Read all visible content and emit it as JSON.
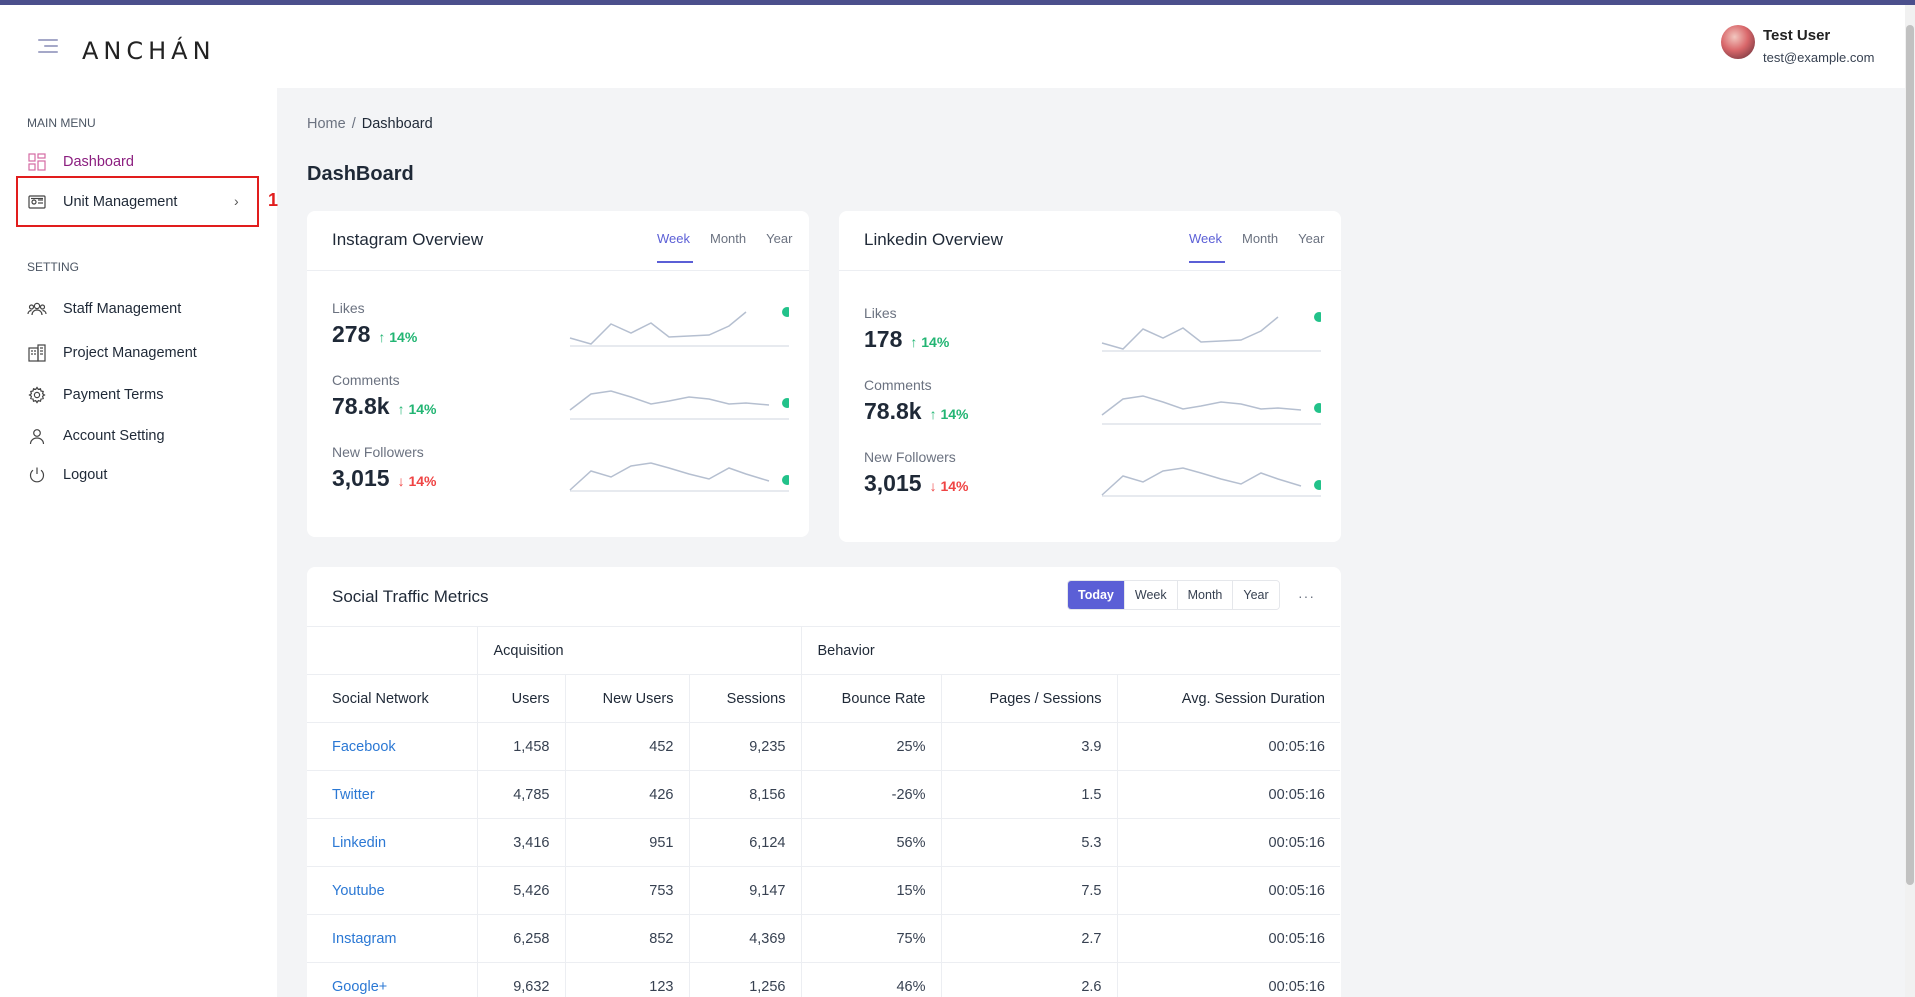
{
  "header": {
    "logo": "ANCHÁN",
    "user_name": "Test User",
    "user_email": "test@example.com"
  },
  "sidebar": {
    "main_menu_label": "MAIN MENU",
    "setting_label": "SETTING",
    "main_items": [
      "Dashboard",
      "Unit Management"
    ],
    "setting_items": [
      "Staff Management",
      "Project Management",
      "Payment Terms",
      "Account Setting",
      "Logout"
    ],
    "annotation": "1"
  },
  "breadcrumb": {
    "home": "Home",
    "separator": "/",
    "current": "Dashboard"
  },
  "page_title": "DashBoard",
  "instagram": {
    "title": "Instagram Overview",
    "tabs": [
      "Week",
      "Month",
      "Year"
    ],
    "metrics": [
      {
        "label": "Likes",
        "value": "278",
        "arrow": "↑",
        "delta": "14%"
      },
      {
        "label": "Comments",
        "value": "78.8k",
        "arrow": "↑",
        "delta": "14%"
      },
      {
        "label": "New Followers",
        "value": "3,015",
        "arrow": "↓",
        "delta": "14%"
      }
    ]
  },
  "linkedin": {
    "title": "Linkedin Overview",
    "tabs": [
      "Week",
      "Month",
      "Year"
    ],
    "metrics": [
      {
        "label": "Likes",
        "value": "178",
        "arrow": "↑",
        "delta": "14%"
      },
      {
        "label": "Comments",
        "value": "78.8k",
        "arrow": "↑",
        "delta": "14%"
      },
      {
        "label": "New Followers",
        "value": "3,015",
        "arrow": "↓",
        "delta": "14%"
      }
    ]
  },
  "traffic": {
    "title": "Social Traffic Metrics",
    "ranges": [
      "Today",
      "Week",
      "Month",
      "Year"
    ],
    "more": "···",
    "groups": [
      "Acquisition",
      "Behavior"
    ],
    "columns": [
      "Social Network",
      "Users",
      "New Users",
      "Sessions",
      "Bounce Rate",
      "Pages / Sessions",
      "Avg. Session Duration"
    ],
    "rows": [
      [
        "Facebook",
        "1,458",
        "452",
        "9,235",
        "25%",
        "3.9",
        "00:05:16"
      ],
      [
        "Twitter",
        "4,785",
        "426",
        "8,156",
        "-26%",
        "1.5",
        "00:05:16"
      ],
      [
        "Linkedin",
        "3,416",
        "951",
        "6,124",
        "56%",
        "5.3",
        "00:05:16"
      ],
      [
        "Youtube",
        "5,426",
        "753",
        "9,147",
        "15%",
        "7.5",
        "00:05:16"
      ],
      [
        "Instagram",
        "6,258",
        "852",
        "4,369",
        "75%",
        "2.7",
        "00:05:16"
      ],
      [
        "Google+",
        "9,632",
        "123",
        "1,256",
        "46%",
        "2.6",
        "00:05:16"
      ]
    ]
  },
  "colors": {
    "accent": "#5b5fd6",
    "active_nav": "#8b1e7f",
    "up": "#22b573",
    "down": "#ef4444",
    "link": "#2b78d4"
  }
}
